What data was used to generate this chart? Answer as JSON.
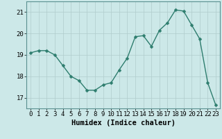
{
  "x": [
    0,
    1,
    2,
    3,
    4,
    5,
    6,
    7,
    8,
    9,
    10,
    11,
    12,
    13,
    14,
    15,
    16,
    17,
    18,
    19,
    20,
    21,
    22,
    23
  ],
  "y": [
    19.1,
    19.2,
    19.2,
    19.0,
    18.5,
    18.0,
    17.8,
    17.35,
    17.35,
    17.6,
    17.7,
    18.3,
    18.85,
    19.85,
    19.9,
    19.4,
    20.15,
    20.5,
    21.1,
    21.05,
    20.4,
    19.75,
    17.7,
    16.65
  ],
  "line_color": "#2e7d6e",
  "marker": "D",
  "marker_size": 2.5,
  "background_color": "#cce8e8",
  "grid_color": "#b0cccc",
  "xlabel": "Humidex (Indice chaleur)",
  "ylabel": "",
  "ylim": [
    16.5,
    21.5
  ],
  "xlim": [
    -0.5,
    23.5
  ],
  "yticks": [
    17,
    18,
    19,
    20,
    21
  ],
  "xticks": [
    0,
    1,
    2,
    3,
    4,
    5,
    6,
    7,
    8,
    9,
    10,
    11,
    12,
    13,
    14,
    15,
    16,
    17,
    18,
    19,
    20,
    21,
    22,
    23
  ],
  "tick_fontsize": 6.5,
  "xlabel_fontsize": 7.5,
  "line_width": 1.0,
  "spine_color": "#5a9090"
}
